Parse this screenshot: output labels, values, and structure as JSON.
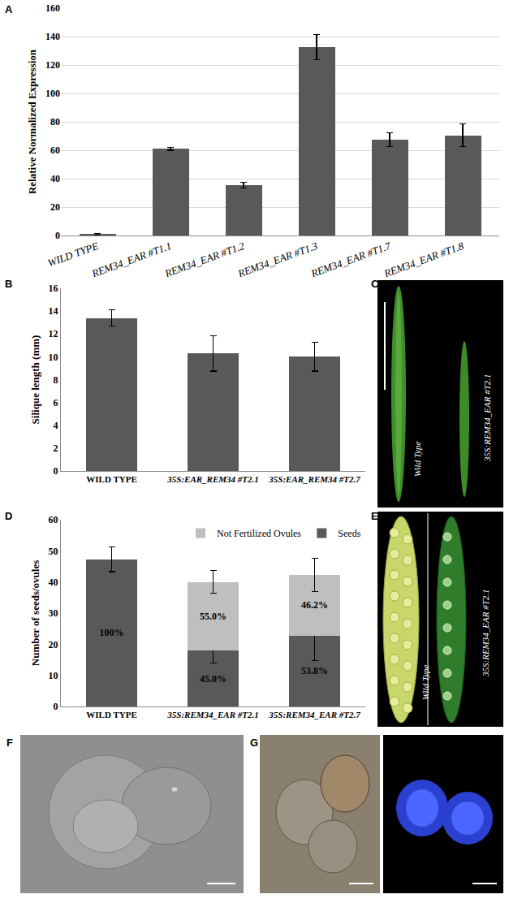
{
  "chart_data": [
    {
      "type": "bar",
      "y_label": "Relative Normalized Expression",
      "categories": [
        "WILD TYPE",
        "REM34_EAR #T1.1",
        "REM34_EAR #T1.2",
        "REM34_EAR #T1.3",
        "REM34_EAR #T1.7",
        "REM34_EAR #T1.8"
      ],
      "values": [
        1,
        61,
        35.5,
        132.5,
        67.5,
        70.5
      ],
      "errors": [
        0.5,
        1,
        2,
        9,
        5,
        8
      ],
      "color": "#595959",
      "ylim": [
        0,
        160
      ],
      "yticks": [
        0,
        20,
        40,
        60,
        80,
        100,
        120,
        140,
        160
      ],
      "grid": true
    },
    {
      "type": "bar",
      "y_label": "Silique length (mm)",
      "categories": [
        "WILD TYPE",
        "35S:EAR_REM34 #T2.1",
        "35S:EAR_REM34 #T2.7"
      ],
      "values": [
        13.4,
        10.3,
        10.0
      ],
      "errors": [
        0.7,
        1.55,
        1.25
      ],
      "color": "#595959",
      "ylim": [
        0,
        16
      ],
      "yticks": [
        0,
        2,
        4,
        6,
        8,
        10,
        12,
        14,
        16
      ],
      "grid": false
    },
    {
      "type": "bar",
      "stacked": true,
      "y_label": "Number of seeds/ovules",
      "categories": [
        "WILD TYPE",
        "35S:REM34_EAR #T2.1",
        "35S:REM34_EAR #T2.7"
      ],
      "series": [
        {
          "name": "Seeds",
          "color": "#595959",
          "values": [
            47.3,
            18,
            22.8
          ],
          "errors": [
            4,
            4,
            8
          ],
          "percent_labels": [
            "100%",
            "45.0%",
            "53.8%"
          ]
        },
        {
          "name": "Not Fertilized Ovules",
          "color": "#bfbfbf",
          "values": [
            null,
            22,
            19.5
          ],
          "errors": [
            null,
            3.7,
            5.3
          ],
          "percent_labels": [
            null,
            "55.0%",
            "46.2%"
          ]
        }
      ],
      "legend": "top-right",
      "ylim": [
        0,
        60
      ],
      "yticks": [
        0,
        10,
        20,
        30,
        40,
        50,
        60
      ],
      "grid": false
    }
  ],
  "figure": {
    "panel_labels": [
      "A",
      "B",
      "C",
      "D",
      "E",
      "F",
      "G"
    ],
    "photos": {
      "C": [
        "Wild Type",
        "35S:REM34_EAR #T2.1"
      ],
      "E": [
        "Wild Type",
        "35S:REM34_EAR #T2.1"
      ],
      "F": [
        "*"
      ]
    }
  }
}
